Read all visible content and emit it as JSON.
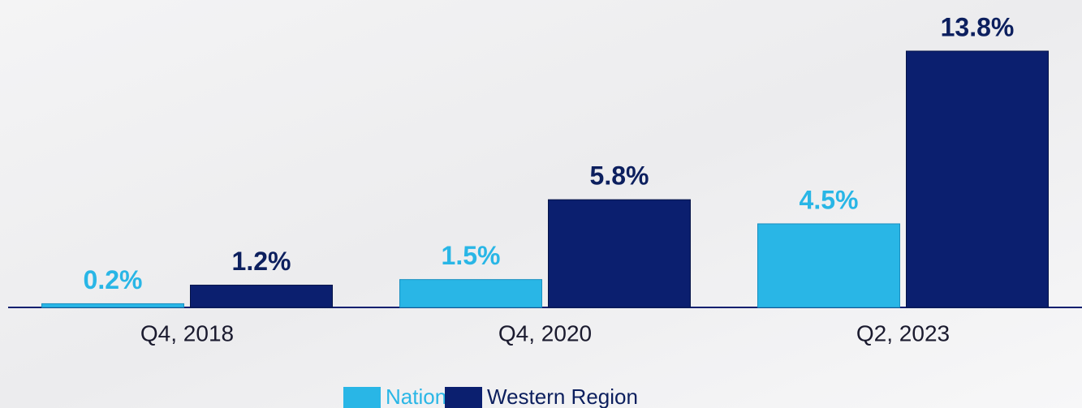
{
  "chart_data": {
    "type": "bar",
    "categories": [
      "Q4, 2018",
      "Q4, 2020",
      "Q2, 2023"
    ],
    "series": [
      {
        "name": "National",
        "color": "#29b6e6",
        "values": [
          0.2,
          1.5,
          4.5
        ],
        "value_labels": [
          "0.2%",
          "1.5%",
          "4.5%"
        ]
      },
      {
        "name": "Western Region",
        "color": "#0b1f6f",
        "values": [
          1.2,
          5.8,
          13.8
        ],
        "value_labels": [
          "1.2%",
          "5.8%",
          "13.8%"
        ]
      }
    ]
  }
}
